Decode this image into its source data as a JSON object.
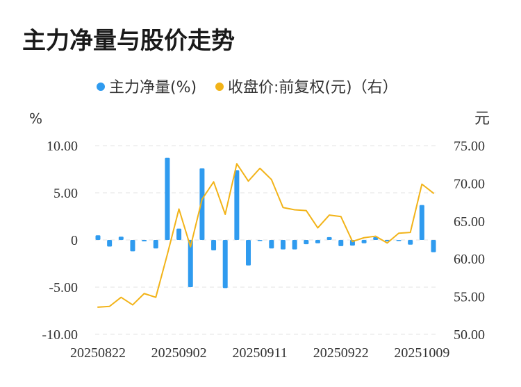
{
  "chart_data": {
    "type": "bar",
    "title": "主力净量与股价走势",
    "legend": [
      {
        "label": "主力净量(%)",
        "color": "#2f9bef"
      },
      {
        "label": "收盘价:前复权(元)（右）",
        "color": "#f2b318"
      }
    ],
    "y_left_unit": "%",
    "y_right_unit": "元",
    "y_left_ticks": [
      "10.00",
      "5.00",
      "0",
      "-5.00",
      "-10.00"
    ],
    "y_right_ticks": [
      "75.00",
      "70.00",
      "65.00",
      "60.00",
      "55.00",
      "50.00"
    ],
    "ylim_left": [
      -10,
      10
    ],
    "ylim_right": [
      50,
      75
    ],
    "x_tick_labels": [
      "20250822",
      "20250902",
      "20250911",
      "20250922",
      "20251009"
    ],
    "x_tick_indices": [
      0,
      7,
      14,
      21,
      28
    ],
    "grid": true,
    "legend_position": "top-center",
    "series": [
      {
        "name": "主力净量(%)",
        "type": "bar",
        "axis": "left",
        "color": "#2f9bef",
        "values": [
          0.5,
          -0.7,
          0.35,
          -1.2,
          -0.15,
          -0.9,
          8.7,
          1.2,
          -5.0,
          7.6,
          -1.1,
          -5.1,
          7.4,
          -2.7,
          -0.1,
          -0.9,
          -1.0,
          -1.0,
          -0.45,
          -0.35,
          0.3,
          -0.65,
          -0.6,
          -0.35,
          0.3,
          -0.15,
          -0.05,
          -0.5,
          3.7,
          -1.3
        ]
      },
      {
        "name": "收盘价:前复权(元)（右）",
        "type": "line",
        "axis": "right",
        "color": "#f2b318",
        "values": [
          53.6,
          53.7,
          54.9,
          53.9,
          55.4,
          54.9,
          60.6,
          66.6,
          61.6,
          67.9,
          70.2,
          65.9,
          72.6,
          70.3,
          72.0,
          70.5,
          66.8,
          66.5,
          66.4,
          64.1,
          65.8,
          65.6,
          62.3,
          62.8,
          63.0,
          62.1,
          63.4,
          63.5,
          69.9,
          68.7
        ]
      }
    ]
  }
}
